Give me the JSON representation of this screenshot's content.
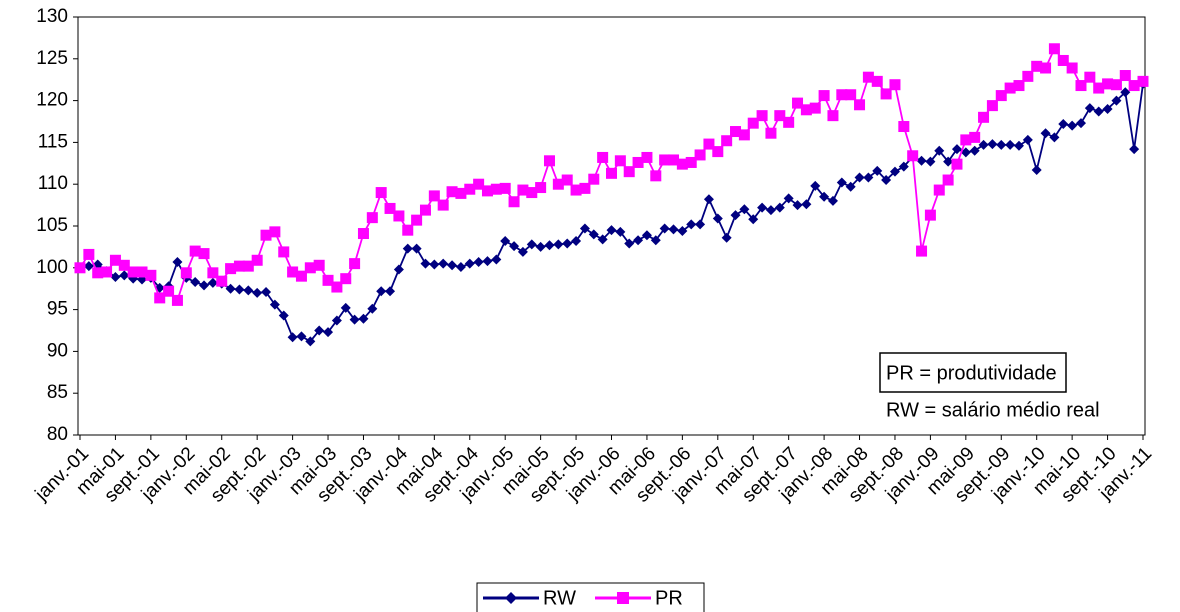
{
  "chart_data": {
    "type": "line",
    "categories": [
      "janv.-01",
      null,
      null,
      null,
      "mai-01",
      null,
      null,
      null,
      "sept.-01",
      null,
      null,
      null,
      "janv.-02",
      null,
      null,
      null,
      "mai-02",
      null,
      null,
      null,
      "sept.-02",
      null,
      null,
      null,
      "janv.-03",
      null,
      null,
      null,
      "mai-03",
      null,
      null,
      null,
      "sept.-03",
      null,
      null,
      null,
      "janv.-04",
      null,
      null,
      null,
      "mai-04",
      null,
      null,
      null,
      "sept.-04",
      null,
      null,
      null,
      "janv.-05",
      null,
      null,
      null,
      "mai-05",
      null,
      null,
      null,
      "sept.-05",
      null,
      null,
      null,
      "janv.-06",
      null,
      null,
      null,
      "mai-06",
      null,
      null,
      null,
      "sept.-06",
      null,
      null,
      null,
      "janv.-07",
      null,
      null,
      null,
      "mai-07",
      null,
      null,
      null,
      "sept.-07",
      null,
      null,
      null,
      "janv.-08",
      null,
      null,
      null,
      "mai-08",
      null,
      null,
      null,
      "sept.-08",
      null,
      null,
      null,
      "janv.-09",
      null,
      null,
      null,
      "mai-09",
      null,
      null,
      null,
      "sept.-09",
      null,
      null,
      null,
      "janv.-10",
      null,
      null,
      null,
      "mai-10",
      null,
      null,
      null,
      "sept.-10",
      null,
      null,
      null,
      "janv.-11"
    ],
    "series": [
      {
        "name": "RW",
        "color": "#000080",
        "marker": "diamond",
        "values": [
          100,
          100.2,
          100.4,
          99.6,
          98.9,
          99.1,
          98.7,
          98.6,
          98.8,
          97.6,
          97.8,
          100.7,
          98.8,
          98.3,
          97.9,
          98.2,
          98.1,
          97.5,
          97.4,
          97.3,
          97.0,
          97.1,
          95.6,
          94.3,
          91.7,
          91.8,
          91.2,
          92.5,
          92.3,
          93.7,
          95.2,
          93.8,
          93.9,
          95.1,
          97.2,
          97.2,
          99.8,
          102.3,
          102.3,
          100.5,
          100.4,
          100.5,
          100.3,
          100.1,
          100.5,
          100.7,
          100.8,
          101.0,
          103.2,
          102.6,
          101.9,
          102.8,
          102.5,
          102.7,
          102.8,
          102.9,
          103.2,
          104.7,
          104.0,
          103.4,
          104.5,
          104.3,
          102.9,
          103.3,
          103.9,
          103.3,
          104.7,
          104.6,
          104.4,
          105.2,
          105.2,
          108.2,
          105.9,
          103.6,
          106.3,
          107.0,
          105.8,
          107.2,
          106.9,
          107.2,
          108.3,
          107.5,
          107.6,
          109.8,
          108.5,
          108.0,
          110.2,
          109.7,
          110.8,
          110.8,
          111.6,
          110.5,
          111.5,
          112.1,
          113.3,
          112.8,
          112.7,
          114.0,
          112.7,
          114.2,
          113.8,
          114.0,
          114.7,
          114.8,
          114.7,
          114.7,
          114.6,
          115.3,
          111.7,
          116.1,
          115.6,
          117.2,
          117.0,
          117.3,
          119.1,
          118.7,
          119.0,
          120.0,
          121.0,
          114.2,
          122.0
        ]
      },
      {
        "name": "PR",
        "color": "#ff00ff",
        "marker": "square",
        "values": [
          100,
          101.6,
          99.4,
          99.5,
          100.9,
          100.3,
          99.5,
          99.5,
          99.1,
          96.4,
          97.2,
          96.1,
          99.4,
          102.0,
          101.7,
          99.4,
          98.4,
          99.9,
          100.2,
          100.2,
          100.9,
          103.9,
          104.3,
          101.9,
          99.5,
          99.0,
          100.0,
          100.3,
          98.5,
          97.7,
          98.7,
          100.5,
          104.1,
          106.0,
          109.0,
          107.1,
          106.2,
          104.5,
          105.7,
          106.9,
          108.6,
          107.5,
          109.1,
          108.9,
          109.4,
          110.0,
          109.2,
          109.4,
          109.5,
          107.9,
          109.3,
          109.0,
          109.6,
          112.8,
          110.0,
          110.5,
          109.3,
          109.5,
          110.6,
          113.2,
          111.3,
          112.8,
          111.5,
          112.6,
          113.2,
          111.0,
          112.9,
          112.9,
          112.4,
          112.6,
          113.5,
          114.8,
          113.9,
          115.2,
          116.3,
          115.9,
          117.3,
          118.2,
          116.1,
          118.2,
          117.4,
          119.7,
          118.9,
          119.1,
          120.6,
          118.2,
          120.7,
          120.7,
          119.5,
          122.8,
          122.3,
          120.8,
          121.9,
          116.9,
          113.4,
          102.0,
          106.3,
          109.3,
          110.5,
          112.4,
          115.3,
          115.6,
          118.0,
          119.4,
          120.6,
          121.5,
          121.8,
          122.9,
          124.1,
          123.9,
          126.2,
          124.8,
          123.9,
          121.8,
          122.8,
          121.5,
          122.0,
          121.9,
          123.0,
          121.8,
          122.3
        ]
      }
    ],
    "ylim": [
      80,
      130
    ],
    "yticks": [
      80,
      85,
      90,
      95,
      100,
      105,
      110,
      115,
      120,
      125,
      130
    ],
    "annotations": [
      "PR = produtividade",
      "RW = salário médio real"
    ],
    "legend": "bottom"
  }
}
